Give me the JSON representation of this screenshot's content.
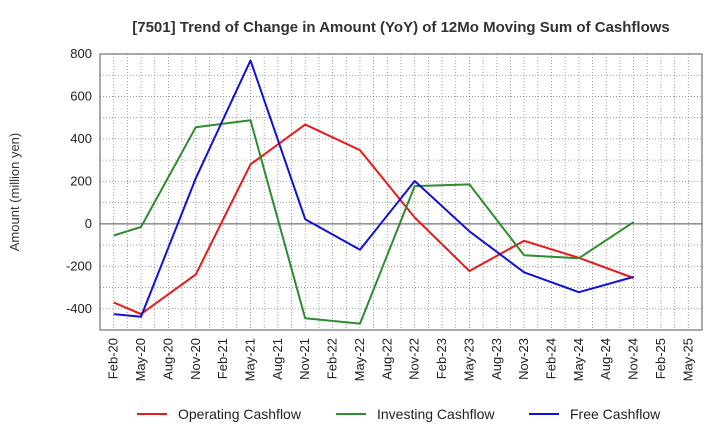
{
  "chart_data": {
    "type": "line",
    "title": "[7501]  Trend of Change in Amount (YoY) of 12Mo Moving Sum of Cashflows",
    "xlabel": "",
    "ylabel": "Amount (million yen)",
    "ylim": [
      -500,
      800
    ],
    "yticks": [
      -400,
      -200,
      0,
      200,
      400,
      600,
      800
    ],
    "grid": true,
    "legend_position": "bottom",
    "categories": [
      "Feb-20",
      "May-20",
      "Aug-20",
      "Nov-20",
      "Feb-21",
      "May-21",
      "Aug-21",
      "Nov-21",
      "Feb-22",
      "May-22",
      "Aug-22",
      "Nov-22",
      "Feb-23",
      "May-23",
      "Aug-23",
      "Nov-23",
      "Feb-24",
      "May-24",
      "Aug-24",
      "Nov-24",
      "Feb-25",
      "May-25"
    ],
    "series": [
      {
        "name": "Operating Cashflow",
        "color": "#e8191a",
        "values": [
          -370,
          -425,
          null,
          -238,
          null,
          280,
          null,
          468,
          null,
          347,
          null,
          30,
          null,
          -222,
          null,
          -80,
          null,
          -160,
          null,
          -255,
          null,
          null
        ]
      },
      {
        "name": "Investing Cashflow",
        "color": "#2e8b2e",
        "values": [
          -55,
          -15,
          null,
          455,
          null,
          488,
          null,
          -445,
          null,
          -470,
          null,
          178,
          null,
          186,
          null,
          -148,
          null,
          -162,
          null,
          8,
          null,
          null
        ]
      },
      {
        "name": "Free Cashflow",
        "color": "#1010dd",
        "values": [
          -425,
          -438,
          null,
          215,
          null,
          770,
          null,
          22,
          null,
          -122,
          null,
          202,
          null,
          -35,
          null,
          -228,
          null,
          -322,
          null,
          -250,
          null,
          null
        ]
      }
    ]
  }
}
